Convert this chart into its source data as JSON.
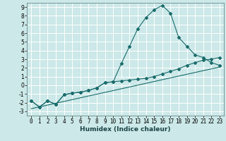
{
  "xlabel": "Humidex (Indice chaleur)",
  "bg_color": "#cce8e8",
  "grid_color": "#ffffff",
  "line_color": "#1a6b6b",
  "xlim": [
    -0.5,
    23.5
  ],
  "ylim": [
    -3.5,
    9.5
  ],
  "xticks": [
    0,
    1,
    2,
    3,
    4,
    5,
    6,
    7,
    8,
    9,
    10,
    11,
    12,
    13,
    14,
    15,
    16,
    17,
    18,
    19,
    20,
    21,
    22,
    23
  ],
  "yticks": [
    -3,
    -2,
    -1,
    0,
    1,
    2,
    3,
    4,
    5,
    6,
    7,
    8,
    9
  ],
  "curve1_x": [
    0,
    1,
    2,
    3,
    4,
    5,
    6,
    7,
    8,
    9,
    10,
    11,
    12,
    13,
    14,
    15,
    16,
    17,
    18,
    19,
    20,
    21,
    22,
    23
  ],
  "curve1_y": [
    -1.8,
    -2.5,
    -1.8,
    -2.2,
    -1.1,
    -0.9,
    -0.8,
    -0.6,
    -0.3,
    0.3,
    0.4,
    2.5,
    4.5,
    6.5,
    7.8,
    8.7,
    9.2,
    8.3,
    5.5,
    4.5,
    3.5,
    3.2,
    2.6,
    2.3
  ],
  "curve2_x": [
    0,
    1,
    2,
    3,
    4,
    5,
    6,
    7,
    8,
    9,
    10,
    11,
    12,
    13,
    14,
    15,
    16,
    17,
    18,
    19,
    20,
    21,
    22,
    23
  ],
  "curve2_y": [
    -1.8,
    -2.5,
    -1.8,
    -2.2,
    -1.1,
    -0.9,
    -0.8,
    -0.6,
    -0.3,
    0.3,
    0.4,
    0.5,
    0.6,
    0.7,
    0.8,
    1.0,
    1.3,
    1.6,
    1.9,
    2.3,
    2.6,
    2.9,
    3.0,
    3.2
  ],
  "curve3_x": [
    0,
    23
  ],
  "curve3_y": [
    -2.7,
    2.1
  ],
  "marker": "D",
  "markersize": 2.0,
  "linewidth": 0.8,
  "tick_fontsize": 5.5,
  "xlabel_fontsize": 6.5
}
